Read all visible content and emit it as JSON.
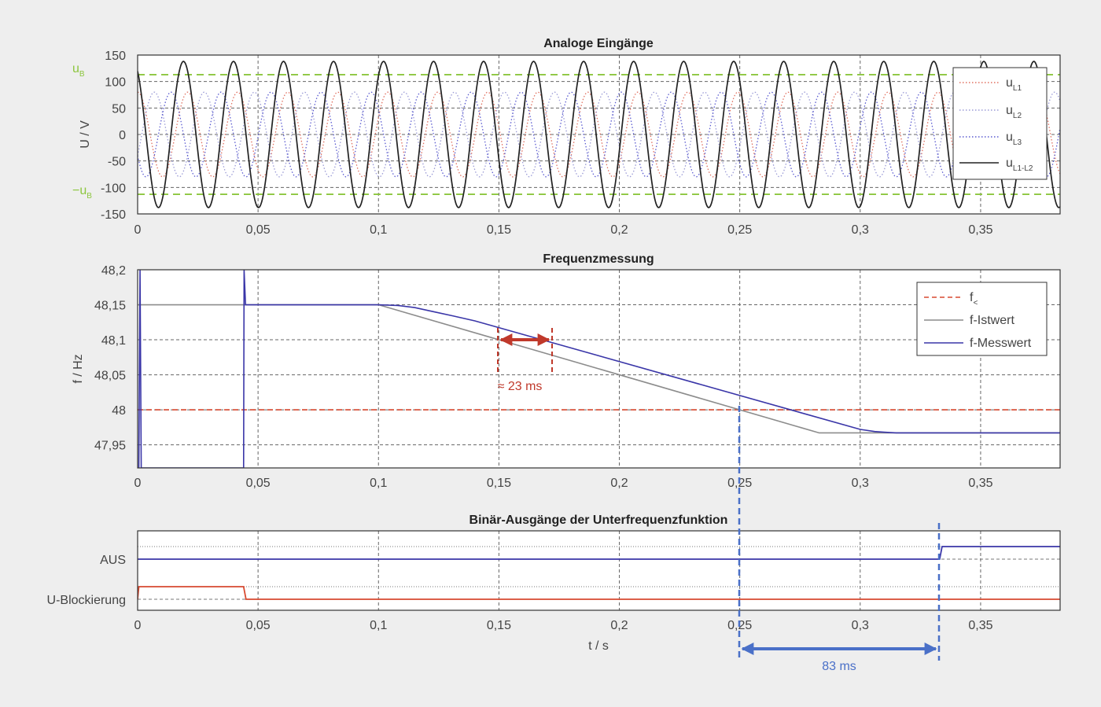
{
  "colors": {
    "background": "#eeeeee",
    "plot_bg": "#ffffff",
    "u_L1": "#e07060",
    "u_L2": "#9a9ad6",
    "u_L3": "#5a5ad0",
    "u_L1_L2": "#222222",
    "u_B": "#8cc63e",
    "f_threshold": "#d84a30",
    "f_istwert": "#8c8c8c",
    "f_messwert": "#3a36a8",
    "aus": "#3a36a8",
    "u_blockierung": "#d84a30",
    "marker_red": "#c0392b",
    "marker_blue": "#4a70c8"
  },
  "chart_data": [
    {
      "type": "line",
      "title": "Analoge Eingänge",
      "xlabel": "",
      "ylabel": "U / V",
      "xlim": [
        0,
        0.383
      ],
      "ylim": [
        -150,
        150
      ],
      "x_ticks": [
        "0",
        "0,05",
        "0,1",
        "0,15",
        "0,2",
        "0,25",
        "0,3",
        "0,35"
      ],
      "y_ticks": [
        "150",
        "100",
        "50",
        "0",
        "-50",
        "-100",
        "-150"
      ],
      "grid": true,
      "legend_position": "top-right",
      "side_labels": [
        {
          "main": "u",
          "sub": "B",
          "value": 113
        },
        {
          "main": "−u",
          "sub": "B",
          "value": -113
        }
      ],
      "series": [
        {
          "name": "u",
          "sub": "L1",
          "kind": "sine",
          "amplitude": 80,
          "frequency_hz": 48.15,
          "phase_deg": 90,
          "style": "dotted"
        },
        {
          "name": "u",
          "sub": "L2",
          "kind": "sine",
          "amplitude": 80,
          "frequency_hz": 48.15,
          "phase_deg": -30,
          "style": "dotted"
        },
        {
          "name": "u",
          "sub": "L3",
          "kind": "sine",
          "amplitude": 80,
          "frequency_hz": 48.15,
          "phase_deg": 210,
          "style": "dotted"
        },
        {
          "name": "u",
          "sub": "L1-L2",
          "kind": "sine",
          "amplitude": 138,
          "frequency_hz": 48.15,
          "phase_deg": 120,
          "style": "solid"
        }
      ],
      "thresholds": [
        113,
        -113
      ]
    },
    {
      "type": "line",
      "title": "Frequenzmessung",
      "xlabel": "",
      "ylabel": "f / Hz",
      "xlim": [
        0,
        0.383
      ],
      "ylim": [
        47.917,
        48.2
      ],
      "x_ticks": [
        "0",
        "0,05",
        "0,1",
        "0,15",
        "0,2",
        "0,25",
        "0,3",
        "0,35"
      ],
      "y_ticks": [
        "48,2",
        "48,15",
        "48,1",
        "48,05",
        "48",
        "47,95"
      ],
      "grid": true,
      "legend_position": "top-right",
      "series": [
        {
          "name": "f",
          "sub": "<",
          "x": [
            0,
            0.383
          ],
          "y": [
            48.0,
            48.0
          ],
          "style": "dashed"
        },
        {
          "name": "f-Istwert",
          "x": [
            0,
            0.1,
            0.283,
            0.383
          ],
          "y": [
            48.15,
            48.15,
            47.967,
            47.967
          ],
          "style": "solid"
        },
        {
          "name": "f-Messwert",
          "x": [
            0.0005,
            0.001,
            0.0015,
            0.044,
            0.0442,
            0.0448,
            0.046,
            0.1,
            0.108,
            0.115,
            0.123,
            0.131,
            0.14,
            0.3,
            0.306,
            0.31,
            0.315,
            0.383
          ],
          "y": [
            47.917,
            48.2,
            47.917,
            47.917,
            48.2,
            48.15,
            48.15,
            48.15,
            48.149,
            48.146,
            48.14,
            48.134,
            48.127,
            47.972,
            47.969,
            47.968,
            47.967,
            47.967
          ],
          "style": "solid"
        }
      ],
      "annotations": [
        {
          "text": "≈ 23 ms",
          "x_start": 0.15,
          "x_end": 0.173
        }
      ]
    },
    {
      "type": "line",
      "title": "Binär-Ausgänge der Unterfrequenzfunktion",
      "xlabel": "t / s",
      "ylabel": "",
      "xlim": [
        0,
        0.383
      ],
      "x_ticks": [
        "0",
        "0,05",
        "0,1",
        "0,15",
        "0,2",
        "0,25",
        "0,3",
        "0,35"
      ],
      "y_ticks": [
        "AUS",
        "U-Blockierung"
      ],
      "grid": true,
      "series": [
        {
          "name": "AUS",
          "x": [
            0,
            0.333,
            0.334,
            0.383
          ],
          "y": [
            0,
            0,
            1,
            1
          ]
        },
        {
          "name": "U-Blockierung",
          "x": [
            0,
            0.0005,
            0.044,
            0.045,
            0.383
          ],
          "y": [
            0,
            1,
            1,
            0,
            0
          ]
        }
      ],
      "annotations": [
        {
          "text": "83 ms",
          "x_start": 0.25,
          "x_end": 0.333
        }
      ]
    }
  ]
}
